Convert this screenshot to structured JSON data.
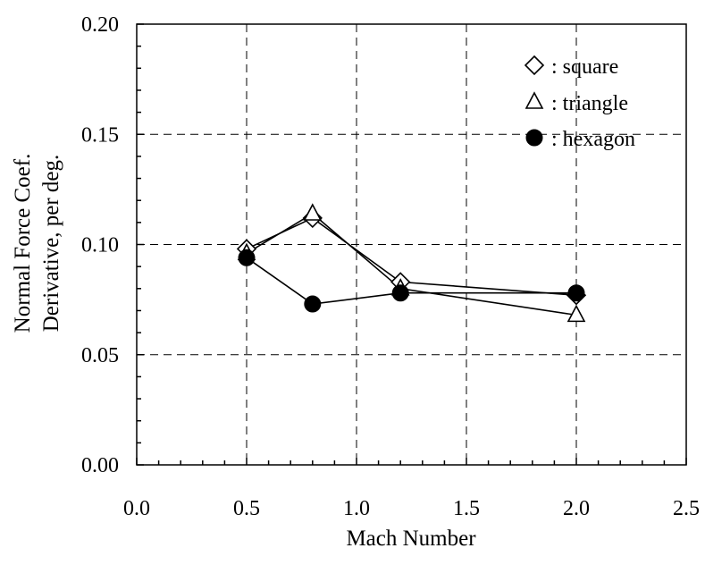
{
  "chart_data": {
    "type": "line",
    "xlabel": "Mach Number",
    "ylabel": [
      "Normal Force Coef.",
      "Derivative, per deg."
    ],
    "xlim": [
      0.0,
      2.5
    ],
    "ylim": [
      0.0,
      0.2
    ],
    "xticks": [
      0.0,
      0.5,
      1.0,
      1.5,
      2.0,
      2.5
    ],
    "xtick_labels": [
      "0.0",
      "0.5",
      "1.0",
      "1.5",
      "2.0",
      "2.5"
    ],
    "yticks": [
      0.0,
      0.05,
      0.1,
      0.15,
      0.2
    ],
    "ytick_labels": [
      "0.00",
      "0.05",
      "0.10",
      "0.15",
      "0.20"
    ],
    "grid": true,
    "legend_position": "top-right",
    "series": [
      {
        "name": ": square",
        "marker": "diamond-open",
        "x": [
          0.5,
          0.8,
          1.2,
          2.0
        ],
        "y": [
          0.098,
          0.112,
          0.083,
          0.077
        ]
      },
      {
        "name": ": triangle",
        "marker": "triangle-open",
        "x": [
          0.5,
          0.8,
          1.2,
          2.0
        ],
        "y": [
          0.096,
          0.114,
          0.08,
          0.068
        ]
      },
      {
        "name": ": hexagon",
        "marker": "circle-filled",
        "x": [
          0.5,
          0.8,
          1.2,
          2.0
        ],
        "y": [
          0.094,
          0.073,
          0.078,
          0.078
        ]
      }
    ]
  }
}
